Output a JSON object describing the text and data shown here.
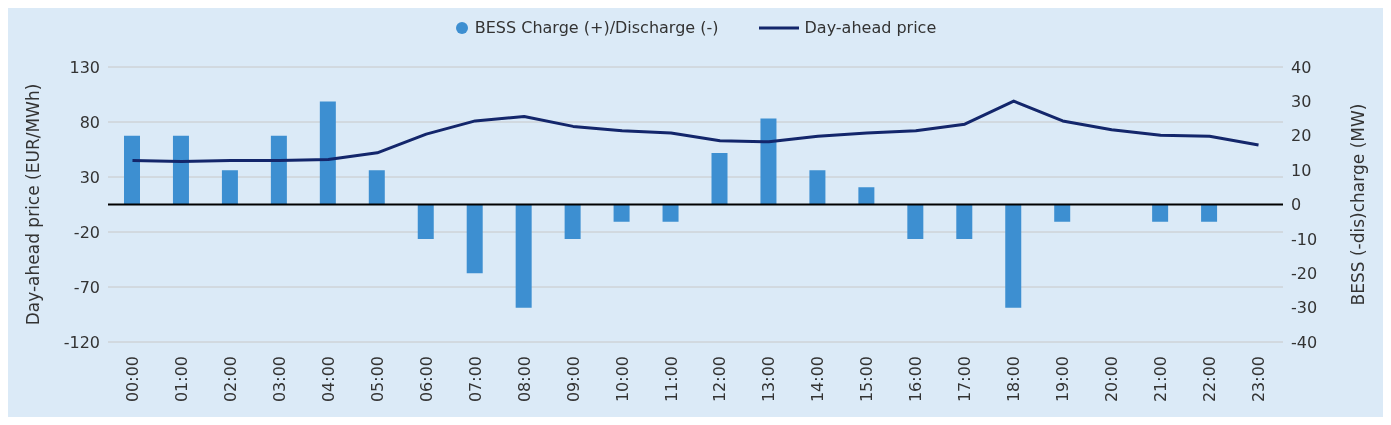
{
  "chart_data": {
    "type": "bar",
    "categories": [
      "00:00",
      "01:00",
      "02:00",
      "03:00",
      "04:00",
      "05:00",
      "06:00",
      "07:00",
      "08:00",
      "09:00",
      "10:00",
      "11:00",
      "12:00",
      "13:00",
      "14:00",
      "15:00",
      "16:00",
      "17:00",
      "18:00",
      "19:00",
      "20:00",
      "21:00",
      "22:00",
      "23:00"
    ],
    "series": [
      {
        "name": "BESS Charge (+)/Discharge (-)",
        "axis": "y2",
        "color": "#3d8fd1",
        "values": [
          20,
          20,
          10,
          20,
          30,
          10,
          -10,
          -20,
          -30,
          -10,
          -5,
          -5,
          15,
          25,
          10,
          5,
          -10,
          -10,
          -30,
          -5,
          0,
          -5,
          -5,
          0
        ]
      },
      {
        "name": "Day-ahead price",
        "type": "line",
        "color": "#13266b",
        "values": [
          45,
          44,
          45,
          45,
          46,
          52,
          69,
          81,
          85,
          76,
          72,
          70,
          63,
          62,
          67,
          70,
          72,
          78,
          99,
          81,
          73,
          68,
          67,
          59
        ]
      }
    ],
    "ylabel": "Day-ahead price (EUR/MWh)",
    "y2label": "BESS (-dis)charge (MW)",
    "ylim": [
      -120,
      130
    ],
    "yticks": [
      -120,
      -70,
      -20,
      30,
      80,
      130
    ],
    "y2lim": [
      -40,
      40
    ],
    "y2ticks": [
      -40,
      -30,
      -20,
      -10,
      0,
      10,
      20,
      30,
      40
    ],
    "ref_lines": [
      {
        "axis": "y2",
        "value": 0,
        "color": "#000000"
      }
    ],
    "grid": "y",
    "legend": "top",
    "marker": "none",
    "line_style": "solid"
  }
}
